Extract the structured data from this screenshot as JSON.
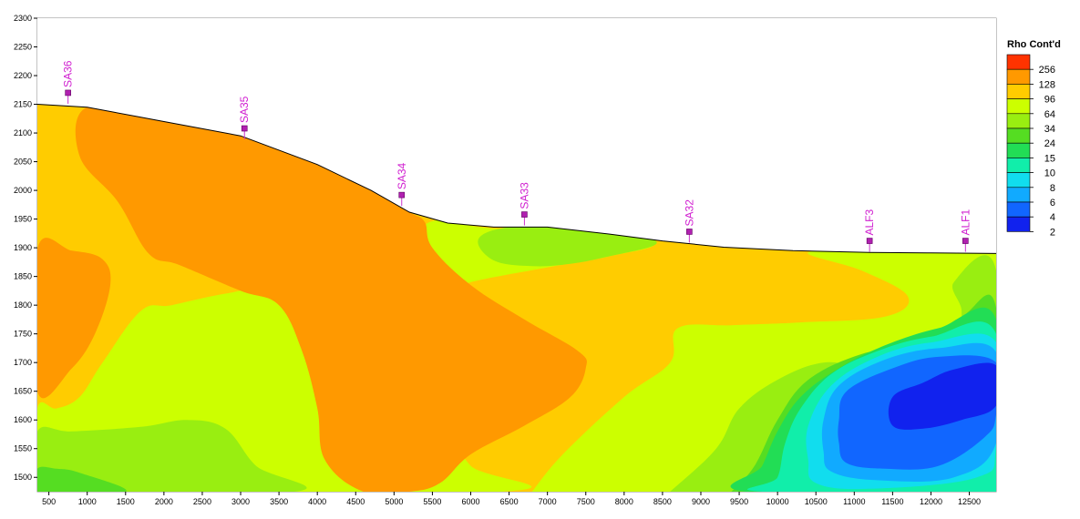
{
  "chart_data": {
    "type": "heatmap",
    "subtype": "filled-contour resistivity cross-section",
    "title": "",
    "xlabel": "",
    "ylabel": "",
    "xlim": [
      350,
      12850
    ],
    "ylim": [
      1475,
      2300
    ],
    "x_ticks": [
      500,
      1000,
      1500,
      2000,
      2500,
      3000,
      3500,
      4000,
      4500,
      5000,
      5500,
      6000,
      6500,
      7000,
      7500,
      8000,
      8500,
      9000,
      9500,
      10000,
      10500,
      11000,
      11500,
      12000,
      12500
    ],
    "y_ticks": [
      1500,
      1550,
      1600,
      1650,
      1700,
      1750,
      1800,
      1850,
      1900,
      1950,
      2000,
      2050,
      2100,
      2150,
      2200,
      2250,
      2300
    ],
    "legend": {
      "title": "Rho Cont'd",
      "placement": "right",
      "levels": [
        {
          "label": "256",
          "color": "#ff3300"
        },
        {
          "label": "128",
          "color": "#ff9900"
        },
        {
          "label": "96",
          "color": "#ffcc00"
        },
        {
          "label": "64",
          "color": "#ccff00"
        },
        {
          "label": "34",
          "color": "#99ee11"
        },
        {
          "label": "24",
          "color": "#55dd22"
        },
        {
          "label": "15",
          "color": "#22dd55"
        },
        {
          "label": "10",
          "color": "#11eeaa"
        },
        {
          "label": "8",
          "color": "#11ddee"
        },
        {
          "label": "6",
          "color": "#11aaff"
        },
        {
          "label": "4",
          "color": "#1166ff"
        },
        {
          "label": "2",
          "color": "#1122ee"
        }
      ]
    },
    "stations": [
      {
        "name": "SA36",
        "x": 750,
        "y": 2170
      },
      {
        "name": "SA35",
        "x": 3050,
        "y": 2108
      },
      {
        "name": "SA34",
        "x": 5100,
        "y": 1992
      },
      {
        "name": "SA33",
        "x": 6700,
        "y": 1958
      },
      {
        "name": "SA32",
        "x": 8850,
        "y": 1928
      },
      {
        "name": "ALF3",
        "x": 11200,
        "y": 1912
      },
      {
        "name": "ALF1",
        "x": 12450,
        "y": 1912
      }
    ],
    "topography": [
      [
        350,
        2150
      ],
      [
        1000,
        2145
      ],
      [
        2000,
        2120
      ],
      [
        3000,
        2095
      ],
      [
        4000,
        2045
      ],
      [
        4700,
        2000
      ],
      [
        5200,
        1962
      ],
      [
        5700,
        1943
      ],
      [
        6300,
        1936
      ],
      [
        7000,
        1936
      ],
      [
        7800,
        1924
      ],
      [
        8500,
        1912
      ],
      [
        9300,
        1901
      ],
      [
        10200,
        1895
      ],
      [
        11200,
        1892
      ],
      [
        12000,
        1891
      ],
      [
        12850,
        1890
      ]
    ],
    "regions": [
      {
        "level": "96",
        "points": [
          [
            350,
            1475
          ],
          [
            12850,
            1475
          ],
          [
            12850,
            2300
          ],
          [
            350,
            2300
          ]
        ]
      },
      {
        "level": "64",
        "points": [
          [
            6800,
            1475
          ],
          [
            12850,
            1475
          ],
          [
            12850,
            1905
          ],
          [
            11500,
            1895
          ],
          [
            10400,
            1892
          ],
          [
            11100,
            1860
          ],
          [
            11700,
            1815
          ],
          [
            11400,
            1780
          ],
          [
            10300,
            1770
          ],
          [
            9400,
            1765
          ],
          [
            8700,
            1760
          ],
          [
            8600,
            1700
          ],
          [
            8000,
            1640
          ],
          [
            7200,
            1540
          ],
          [
            6800,
            1475
          ]
        ]
      },
      {
        "level": "64",
        "points": [
          [
            5700,
            1948
          ],
          [
            6200,
            1935
          ],
          [
            8300,
            1910
          ],
          [
            7800,
            1885
          ],
          [
            7000,
            1866
          ],
          [
            6000,
            1840
          ],
          [
            5900,
            1826
          ],
          [
            5500,
            1840
          ],
          [
            5250,
            1905
          ],
          [
            5400,
            1940
          ]
        ]
      },
      {
        "level": "64",
        "points": [
          [
            350,
            1475
          ],
          [
            6400,
            1475
          ],
          [
            6000,
            1520
          ],
          [
            5500,
            1600
          ],
          [
            4600,
            1660
          ],
          [
            4200,
            1700
          ],
          [
            3700,
            1780
          ],
          [
            3300,
            1825
          ],
          [
            2800,
            1820
          ],
          [
            2100,
            1800
          ],
          [
            1700,
            1790
          ],
          [
            1200,
            1700
          ],
          [
            900,
            1640
          ],
          [
            600,
            1620
          ],
          [
            350,
            1620
          ]
        ]
      },
      {
        "level": "34",
        "points": [
          [
            350,
            1475
          ],
          [
            3700,
            1475
          ],
          [
            3200,
            1520
          ],
          [
            2800,
            1585
          ],
          [
            2300,
            1600
          ],
          [
            1700,
            1588
          ],
          [
            800,
            1580
          ],
          [
            350,
            1580
          ]
        ]
      },
      {
        "level": "34",
        "points": [
          [
            8600,
            1475
          ],
          [
            12850,
            1475
          ],
          [
            12850,
            1860
          ],
          [
            12300,
            1840
          ],
          [
            12400,
            1790
          ],
          [
            12300,
            1745
          ],
          [
            11800,
            1700
          ],
          [
            11200,
            1690
          ],
          [
            10600,
            1700
          ],
          [
            10000,
            1670
          ],
          [
            9500,
            1620
          ],
          [
            9200,
            1550
          ],
          [
            8600,
            1475
          ]
        ]
      },
      {
        "level": "34",
        "points": [
          [
            6500,
            1936
          ],
          [
            7300,
            1937
          ],
          [
            8200,
            1920
          ],
          [
            8400,
            1905
          ],
          [
            7800,
            1885
          ],
          [
            7300,
            1872
          ],
          [
            6800,
            1868
          ],
          [
            6300,
            1878
          ],
          [
            6100,
            1915
          ]
        ]
      },
      {
        "level": "24",
        "points": [
          [
            350,
            1475
          ],
          [
            1500,
            1475
          ],
          [
            900,
            1508
          ],
          [
            600,
            1515
          ],
          [
            350,
            1515
          ]
        ]
      },
      {
        "level": "24",
        "points": [
          [
            9400,
            1475
          ],
          [
            12850,
            1475
          ],
          [
            12850,
            1795
          ],
          [
            12400,
            1780
          ],
          [
            11800,
            1730
          ],
          [
            11100,
            1715
          ],
          [
            10400,
            1670
          ],
          [
            10000,
            1600
          ],
          [
            9700,
            1520
          ],
          [
            9400,
            1475
          ]
        ]
      },
      {
        "level": "15",
        "points": [
          [
            9600,
            1475
          ],
          [
            12850,
            1475
          ],
          [
            12850,
            1775
          ],
          [
            12100,
            1760
          ],
          [
            11400,
            1730
          ],
          [
            10800,
            1690
          ],
          [
            10300,
            1640
          ],
          [
            10000,
            1580
          ],
          [
            9800,
            1520
          ]
        ]
      },
      {
        "level": "10",
        "points": [
          [
            9800,
            1475
          ],
          [
            12850,
            1475
          ],
          [
            12850,
            1750
          ],
          [
            12000,
            1745
          ],
          [
            11300,
            1720
          ],
          [
            10700,
            1680
          ],
          [
            10300,
            1620
          ],
          [
            10100,
            1560
          ],
          [
            10000,
            1500
          ]
        ]
      },
      {
        "level": "8",
        "points": [
          [
            10500,
            1490
          ],
          [
            11200,
            1480
          ],
          [
            12600,
            1500
          ],
          [
            12850,
            1555
          ],
          [
            12850,
            1735
          ],
          [
            12000,
            1735
          ],
          [
            11300,
            1710
          ],
          [
            10700,
            1660
          ],
          [
            10400,
            1590
          ],
          [
            10400,
            1530
          ]
        ]
      },
      {
        "level": "6",
        "points": [
          [
            10700,
            1510
          ],
          [
            11300,
            1495
          ],
          [
            12300,
            1500
          ],
          [
            12850,
            1560
          ],
          [
            12850,
            1718
          ],
          [
            12100,
            1725
          ],
          [
            11400,
            1705
          ],
          [
            10800,
            1660
          ],
          [
            10600,
            1600
          ],
          [
            10600,
            1545
          ]
        ]
      },
      {
        "level": "4",
        "points": [
          [
            10900,
            1525
          ],
          [
            11400,
            1515
          ],
          [
            12100,
            1520
          ],
          [
            12700,
            1570
          ],
          [
            12850,
            1610
          ],
          [
            12850,
            1700
          ],
          [
            12100,
            1710
          ],
          [
            11500,
            1690
          ],
          [
            10900,
            1650
          ],
          [
            10800,
            1600
          ],
          [
            10800,
            1560
          ]
        ]
      },
      {
        "level": "2",
        "points": [
          [
            11500,
            1590
          ],
          [
            11900,
            1585
          ],
          [
            12400,
            1600
          ],
          [
            12850,
            1625
          ],
          [
            12850,
            1695
          ],
          [
            12300,
            1688
          ],
          [
            11900,
            1665
          ],
          [
            11500,
            1640
          ]
        ]
      },
      {
        "level": "128",
        "points": [
          [
            350,
            1650
          ],
          [
            800,
            1690
          ],
          [
            1100,
            1750
          ],
          [
            1300,
            1835
          ],
          [
            1200,
            1880
          ],
          [
            800,
            1895
          ],
          [
            350,
            1898
          ]
        ]
      },
      {
        "level": "128",
        "points": [
          [
            1000,
            2145
          ],
          [
            2000,
            2120
          ],
          [
            3000,
            2095
          ],
          [
            4000,
            2045
          ],
          [
            4700,
            2000
          ],
          [
            5200,
            1962
          ],
          [
            5400,
            1945
          ],
          [
            5500,
            1900
          ],
          [
            6000,
            1835
          ],
          [
            6700,
            1775
          ],
          [
            7400,
            1720
          ],
          [
            7500,
            1690
          ],
          [
            7300,
            1640
          ],
          [
            6700,
            1590
          ],
          [
            6000,
            1540
          ],
          [
            5600,
            1490
          ],
          [
            5200,
            1475
          ],
          [
            4600,
            1475
          ],
          [
            4100,
            1530
          ],
          [
            4000,
            1620
          ],
          [
            3800,
            1720
          ],
          [
            3500,
            1800
          ],
          [
            3000,
            1825
          ],
          [
            2200,
            1870
          ],
          [
            1800,
            1890
          ],
          [
            1400,
            1980
          ],
          [
            900,
            2060
          ]
        ]
      }
    ]
  }
}
